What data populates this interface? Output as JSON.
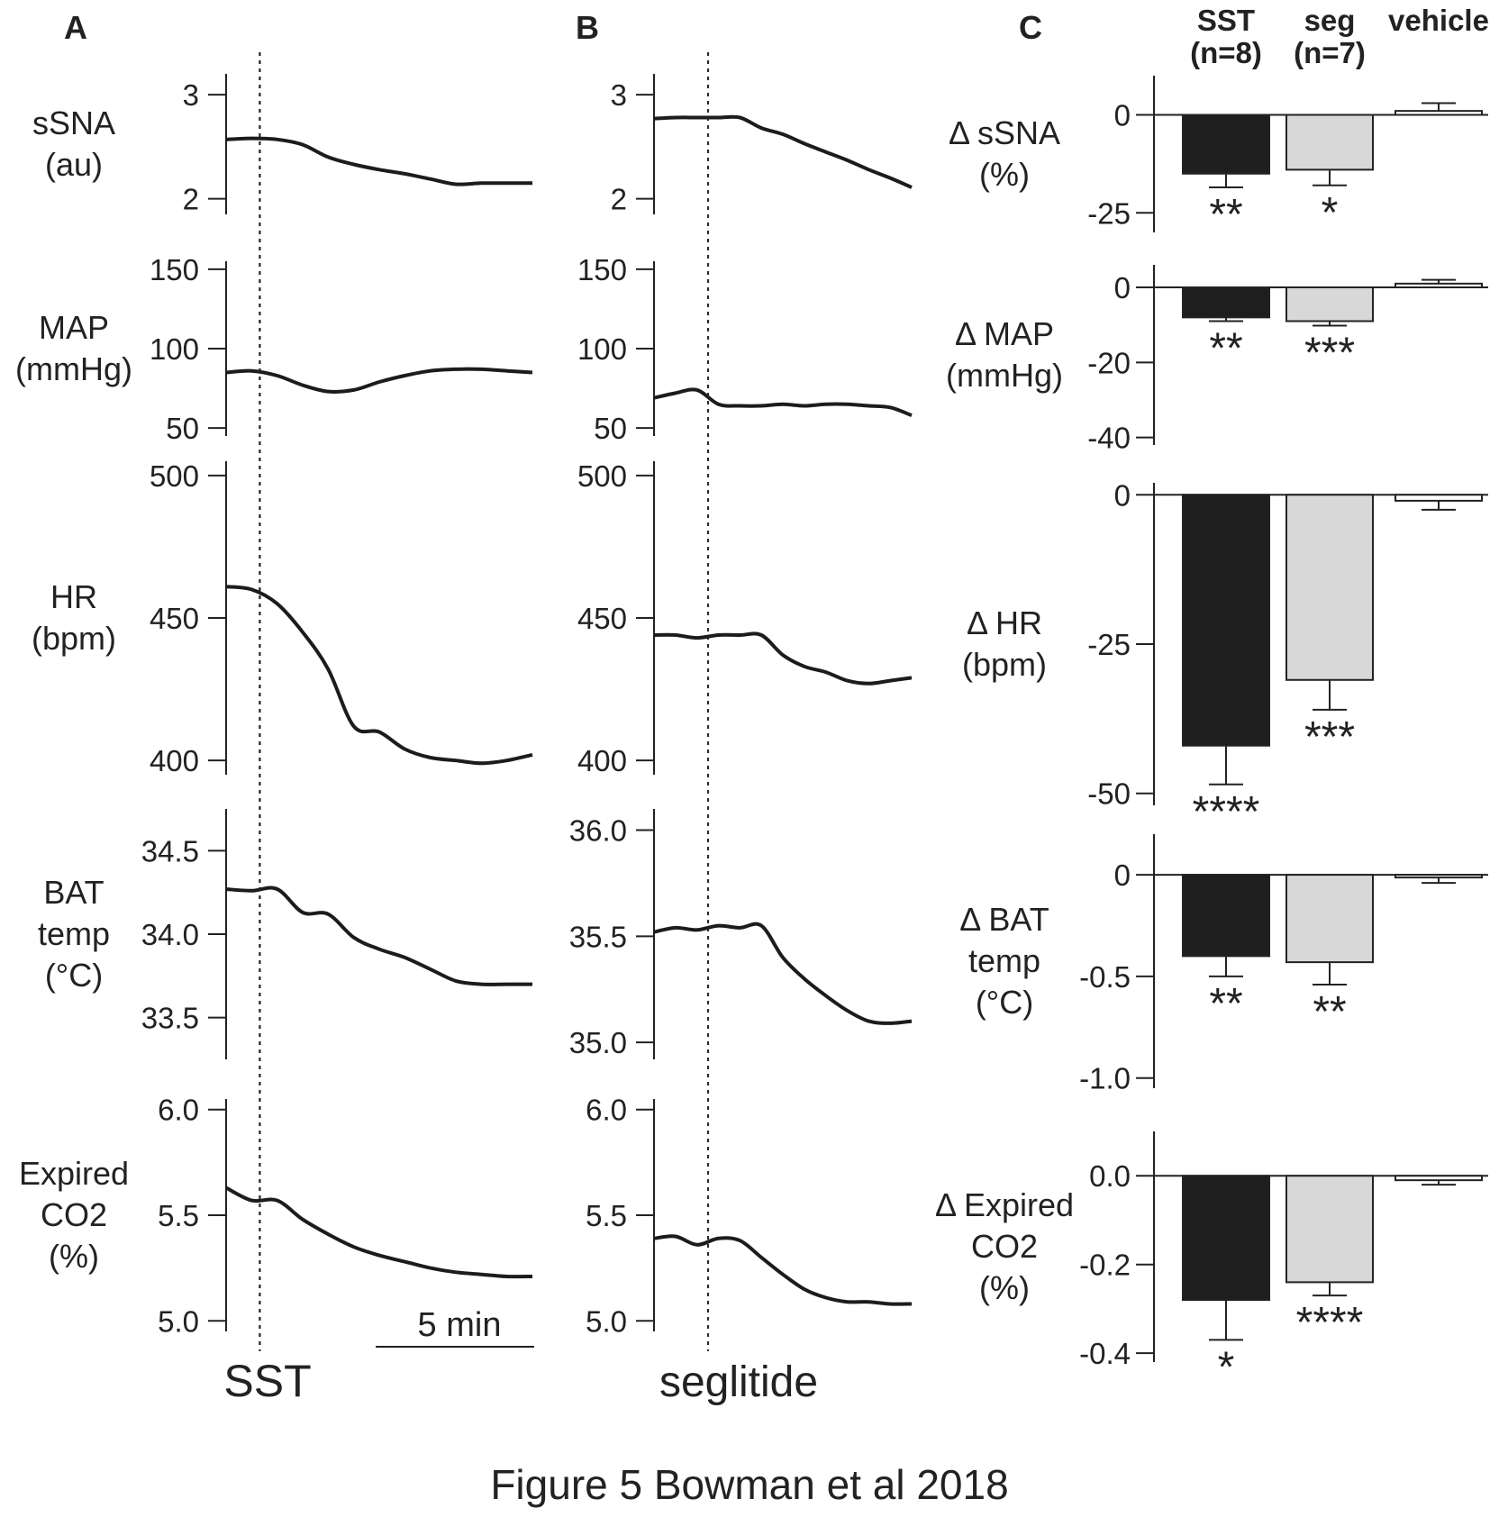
{
  "figure": {
    "caption": "Figure 5 Bowman et al 2018",
    "panel_labels": [
      "A",
      "B",
      "C"
    ],
    "scale_bar_label": "5 min",
    "panel_a_drug": "SST",
    "panel_b_drug": "seglitide"
  },
  "colors": {
    "trace": "#1c1c1c",
    "sst_bar": "#1e1e1e",
    "seg_bar": "#d8d8d8",
    "vehicle_bar": "#ffffff"
  },
  "chart_data": {
    "traces": {
      "type": "line",
      "time_unit": "min",
      "scale_bar_minutes": 5,
      "time_range": [
        0,
        10
      ],
      "injection_time": {
        "SST": 1.1,
        "seglitide": 2.1
      },
      "rows": [
        {
          "label_lines": [
            "sSNA",
            "(au)"
          ],
          "A": {
            "ticks": [
              2,
              3
            ],
            "tick_labels": [
              "2",
              "3"
            ],
            "ylim": [
              1.85,
              3.2
            ],
            "values": [
              2.57,
              2.58,
              2.57,
              2.52,
              2.4,
              2.33,
              2.28,
              2.24,
              2.19,
              2.14,
              2.15,
              2.15,
              2.15
            ]
          },
          "B": {
            "ticks": [
              2,
              3
            ],
            "tick_labels": [
              "2",
              "3"
            ],
            "ylim": [
              1.85,
              3.2
            ],
            "values": [
              2.77,
              2.78,
              2.78,
              2.78,
              2.78,
              2.68,
              2.62,
              2.53,
              2.45,
              2.37,
              2.28,
              2.2,
              2.11
            ]
          }
        },
        {
          "label_lines": [
            "MAP",
            "(mmHg)"
          ],
          "A": {
            "ticks": [
              50,
              100,
              150
            ],
            "tick_labels": [
              "50",
              "100",
              "150"
            ],
            "ylim": [
              45,
              155
            ],
            "values": [
              85,
              86,
              83,
              77,
              73,
              74,
              79,
              83,
              86,
              87,
              87,
              86,
              85
            ]
          },
          "B": {
            "ticks": [
              50,
              100,
              150
            ],
            "tick_labels": [
              "50",
              "100",
              "150"
            ],
            "ylim": [
              45,
              155
            ],
            "values": [
              69,
              72,
              74,
              65,
              64,
              64,
              65,
              64,
              65,
              65,
              64,
              63,
              58
            ]
          }
        },
        {
          "label_lines": [
            "HR",
            "(bpm)"
          ],
          "A": {
            "ticks": [
              400,
              450,
              500
            ],
            "tick_labels": [
              "400",
              "450",
              "500"
            ],
            "ylim": [
              395,
              505
            ],
            "values": [
              461,
              460,
              455,
              445,
              432,
              412,
              410,
              404,
              401,
              400,
              399,
              400,
              402
            ]
          },
          "B": {
            "ticks": [
              400,
              450,
              500
            ],
            "tick_labels": [
              "400",
              "450",
              "500"
            ],
            "ylim": [
              395,
              505
            ],
            "values": [
              444,
              444,
              443,
              444,
              444,
              444,
              437,
              433,
              431,
              428,
              427,
              428,
              429
            ]
          }
        },
        {
          "label_lines": [
            "BAT",
            "temp",
            "(°C)"
          ],
          "A": {
            "ticks": [
              33.5,
              34.0,
              34.5
            ],
            "tick_labels": [
              "33.5",
              "34.0",
              "34.5"
            ],
            "ylim": [
              33.25,
              34.75
            ],
            "values": [
              34.27,
              34.26,
              34.27,
              34.13,
              34.12,
              33.98,
              33.91,
              33.86,
              33.79,
              33.72,
              33.7,
              33.7,
              33.7
            ]
          },
          "B": {
            "ticks": [
              35.0,
              35.5,
              36.0
            ],
            "tick_labels": [
              "35.0",
              "35.5",
              "36.0"
            ],
            "ylim": [
              34.92,
              36.1
            ],
            "values": [
              35.52,
              35.54,
              35.53,
              35.55,
              35.54,
              35.55,
              35.4,
              35.3,
              35.22,
              35.15,
              35.1,
              35.09,
              35.1
            ]
          }
        },
        {
          "label_lines": [
            "Expired",
            "CO2",
            "(%)"
          ],
          "A": {
            "ticks": [
              5.0,
              5.5,
              6.0
            ],
            "tick_labels": [
              "5.0",
              "5.5",
              "6.0"
            ],
            "ylim": [
              4.95,
              6.05
            ],
            "values": [
              5.63,
              5.57,
              5.57,
              5.48,
              5.41,
              5.35,
              5.31,
              5.28,
              5.25,
              5.23,
              5.22,
              5.21,
              5.21
            ]
          },
          "B": {
            "ticks": [
              5.0,
              5.5,
              6.0
            ],
            "tick_labels": [
              "5.0",
              "5.5",
              "6.0"
            ],
            "ylim": [
              4.95,
              6.05
            ],
            "values": [
              5.39,
              5.4,
              5.36,
              5.39,
              5.38,
              5.3,
              5.22,
              5.15,
              5.11,
              5.09,
              5.09,
              5.08,
              5.08
            ]
          }
        }
      ]
    },
    "bars": {
      "type": "bar",
      "categories": [
        "SST",
        "seg",
        "vehicle"
      ],
      "category_labels": [
        [
          "SST",
          "(n=8)"
        ],
        [
          "seg",
          "(n=7)"
        ],
        [
          "vehicle",
          ""
        ]
      ],
      "panels": [
        {
          "label_lines": [
            "Δ sSNA",
            "(%)"
          ],
          "ylim": [
            -30,
            10
          ],
          "ticks": [
            0,
            -25
          ],
          "tick_labels": [
            "0",
            "-25"
          ],
          "values": [
            -15,
            -14,
            1
          ],
          "errors": [
            3.5,
            4,
            2
          ],
          "stars": [
            "**",
            "*",
            ""
          ]
        },
        {
          "label_lines": [
            "Δ MAP",
            "(mmHg)"
          ],
          "ylim": [
            -42,
            6
          ],
          "ticks": [
            0,
            -20,
            -40
          ],
          "tick_labels": [
            "0",
            "-20",
            "-40"
          ],
          "values": [
            -8,
            -9,
            1
          ],
          "errors": [
            1,
            1.2,
            1
          ],
          "stars": [
            "**",
            "***",
            ""
          ]
        },
        {
          "label_lines": [
            "Δ HR",
            "(bpm)"
          ],
          "ylim": [
            -52,
            2
          ],
          "ticks": [
            0,
            -25,
            -50
          ],
          "tick_labels": [
            "0",
            "-25",
            "-50"
          ],
          "values": [
            -42,
            -31,
            -1
          ],
          "errors": [
            6.5,
            5,
            1.5
          ],
          "stars": [
            "****",
            "***",
            ""
          ]
        },
        {
          "label_lines": [
            "Δ BAT",
            "temp",
            "(°C)"
          ],
          "ylim": [
            -1.05,
            0.2
          ],
          "ticks": [
            0,
            -0.5,
            -1.0
          ],
          "tick_labels": [
            "0",
            "-0.5",
            "-1.0"
          ],
          "values": [
            -0.4,
            -0.43,
            -0.01
          ],
          "errors": [
            0.1,
            0.11,
            0.03
          ],
          "stars": [
            "**",
            "**",
            ""
          ]
        },
        {
          "label_lines": [
            "Δ Expired",
            "CO2",
            "(%)"
          ],
          "ylim": [
            -0.42,
            0.1
          ],
          "ticks": [
            0.0,
            -0.2,
            -0.4
          ],
          "tick_labels": [
            "0.0",
            "-0.2",
            "-0.4"
          ],
          "values": [
            -0.28,
            -0.24,
            -0.01
          ],
          "errors": [
            0.09,
            0.03,
            0.01
          ],
          "stars": [
            "*",
            "****",
            ""
          ]
        }
      ]
    }
  }
}
